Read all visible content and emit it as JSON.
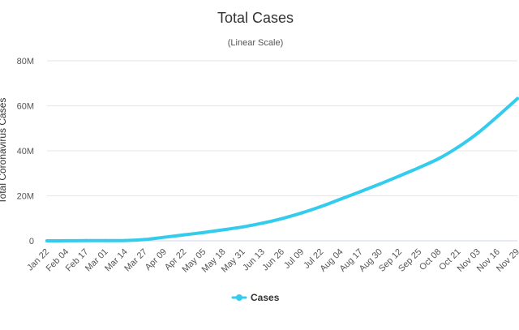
{
  "chart_data": {
    "type": "line",
    "title": "Total Cases",
    "subtitle": "(Linear Scale)",
    "xlabel": "",
    "ylabel": "Total Coronavirus Cases",
    "ylim": [
      0,
      80000000
    ],
    "yticks": [
      {
        "value": 0,
        "label": "0"
      },
      {
        "value": 20000000,
        "label": "20M"
      },
      {
        "value": 40000000,
        "label": "40M"
      },
      {
        "value": 60000000,
        "label": "60M"
      },
      {
        "value": 80000000,
        "label": "80M"
      }
    ],
    "categories": [
      "Jan 22",
      "Feb 04",
      "Feb 17",
      "Mar 01",
      "Mar 14",
      "Mar 27",
      "Apr 09",
      "Apr 22",
      "May 05",
      "May 18",
      "May 31",
      "Jun 13",
      "Jun 26",
      "Jul 09",
      "Jul 22",
      "Aug 04",
      "Aug 17",
      "Aug 30",
      "Sep 12",
      "Sep 25",
      "Oct 08",
      "Oct 21",
      "Nov 03",
      "Nov 16",
      "Nov 29"
    ],
    "series": [
      {
        "name": "Cases",
        "color": "#33ccee",
        "values": [
          600,
          24000,
          73000,
          88000,
          145000,
          590000,
          1600000,
          2650000,
          3700000,
          4900000,
          6200000,
          7850000,
          9900000,
          12400000,
          15300000,
          18600000,
          21900000,
          25300000,
          28900000,
          32600000,
          36600000,
          41800000,
          48000000,
          55400000,
          63200000
        ]
      }
    ],
    "grid": true,
    "legend": "bottom-center"
  }
}
